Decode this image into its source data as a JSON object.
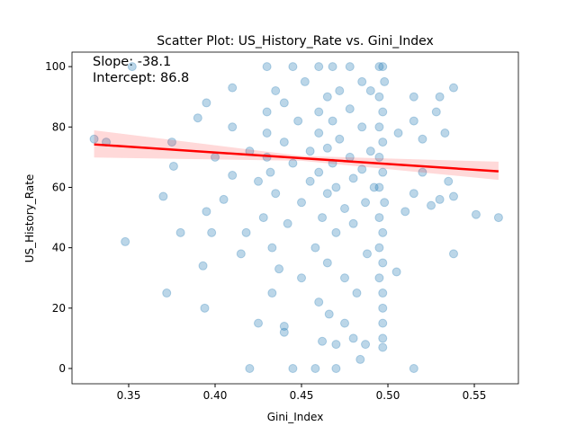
{
  "chart_data": {
    "type": "scatter",
    "title": "Scatter Plot: US_History_Rate vs. Gini_Index",
    "x_label": "Gini_Index",
    "y_label": "US_History_Rate",
    "xlim": [
      0.3172,
      0.5755
    ],
    "ylim": [
      -5.06,
      104.8
    ],
    "xticks": [
      {
        "value": 0.35,
        "label": "0.35"
      },
      {
        "value": 0.4,
        "label": "0.40"
      },
      {
        "value": 0.45,
        "label": "0.45"
      },
      {
        "value": 0.5,
        "label": "0.50"
      },
      {
        "value": 0.55,
        "label": "0.55"
      }
    ],
    "yticks": [
      0,
      20,
      40,
      60,
      80,
      100
    ],
    "grid": false,
    "series": [
      {
        "name": "US_History_Rate",
        "color": "#1f77b4",
        "x": [
          0.33,
          0.337,
          0.348,
          0.352,
          0.37,
          0.372,
          0.375,
          0.376,
          0.38,
          0.39,
          0.393,
          0.394,
          0.395,
          0.395,
          0.398,
          0.4,
          0.405,
          0.41,
          0.41,
          0.41,
          0.415,
          0.418,
          0.42,
          0.42,
          0.425,
          0.425,
          0.428,
          0.43,
          0.43,
          0.43,
          0.43,
          0.432,
          0.433,
          0.433,
          0.435,
          0.435,
          0.437,
          0.44,
          0.44,
          0.44,
          0.44,
          0.442,
          0.445,
          0.445,
          0.445,
          0.448,
          0.45,
          0.45,
          0.452,
          0.455,
          0.455,
          0.458,
          0.458,
          0.46,
          0.46,
          0.46,
          0.46,
          0.46,
          0.462,
          0.462,
          0.465,
          0.465,
          0.465,
          0.465,
          0.466,
          0.468,
          0.468,
          0.468,
          0.47,
          0.47,
          0.47,
          0.47,
          0.472,
          0.472,
          0.475,
          0.475,
          0.475,
          0.478,
          0.478,
          0.478,
          0.48,
          0.48,
          0.48,
          0.482,
          0.484,
          0.485,
          0.485,
          0.485,
          0.487,
          0.487,
          0.488,
          0.49,
          0.49,
          0.492,
          0.495,
          0.495,
          0.495,
          0.495,
          0.495,
          0.495,
          0.495,
          0.495,
          0.497,
          0.497,
          0.497,
          0.497,
          0.497,
          0.497,
          0.497,
          0.497,
          0.497,
          0.497,
          0.497,
          0.498,
          0.498,
          0.505,
          0.506,
          0.51,
          0.515,
          0.515,
          0.515,
          0.515,
          0.52,
          0.52,
          0.525,
          0.528,
          0.53,
          0.53,
          0.533,
          0.535,
          0.538,
          0.538,
          0.538,
          0.551,
          0.564
        ],
        "values": [
          76,
          75,
          42,
          100,
          57,
          25,
          75,
          67,
          45,
          83,
          34,
          20,
          52,
          88,
          45,
          70,
          56,
          80,
          64,
          93,
          38,
          45,
          72,
          0,
          62,
          15,
          50,
          100,
          85,
          78,
          70,
          65,
          40,
          25,
          92,
          58,
          33,
          88,
          75,
          14,
          12,
          48,
          100,
          68,
          0,
          82,
          55,
          30,
          95,
          72,
          62,
          0,
          40,
          100,
          85,
          78,
          65,
          22,
          9,
          50,
          90,
          73,
          58,
          35,
          18,
          100,
          82,
          68,
          60,
          45,
          0,
          8,
          92,
          76,
          53,
          30,
          15,
          100,
          86,
          70,
          63,
          48,
          10,
          25,
          3,
          95,
          80,
          66,
          55,
          8,
          38,
          92,
          72,
          60,
          100,
          90,
          80,
          70,
          60,
          50,
          40,
          30,
          100,
          85,
          75,
          65,
          45,
          35,
          25,
          20,
          15,
          10,
          7,
          95,
          55,
          32,
          78,
          52,
          90,
          0,
          58,
          82,
          76,
          65,
          54,
          85,
          90,
          56,
          78,
          62,
          93,
          38,
          57,
          51,
          50
        ]
      }
    ],
    "regression": {
      "slope": -38.1,
      "intercept": 86.8,
      "x_range": [
        0.33,
        0.564
      ],
      "color": "#ff0000",
      "labels": [
        "Slope: -38.1",
        "Intercept: 86.8"
      ],
      "ci": {
        "x": [
          0.33,
          0.45,
          0.564
        ],
        "lower": [
          69.9,
          68.8,
          62.5
        ],
        "upper": [
          78.9,
          70.4,
          68.5
        ]
      }
    }
  }
}
